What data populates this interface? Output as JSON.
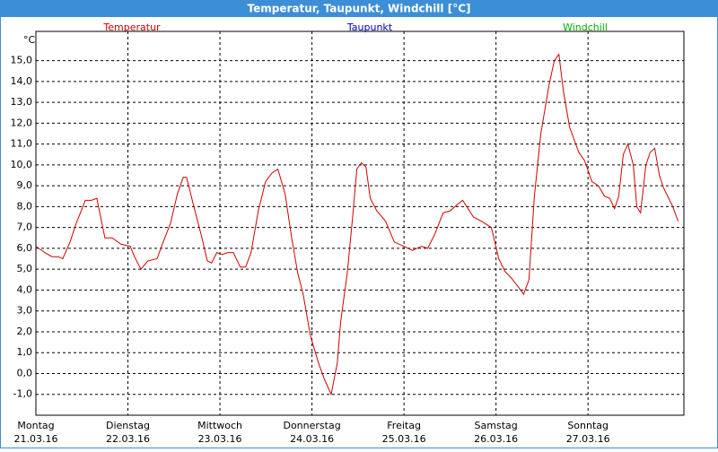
{
  "chart_data": {
    "type": "line",
    "title": "Temperatur, Taupunkt, Windchill [°C]",
    "y_unit": "°C",
    "legend": [
      {
        "name": "Temperatur",
        "color": "#d00000"
      },
      {
        "name": "Taupunkt",
        "color": "#0000c0"
      },
      {
        "name": "Windchill",
        "color": "#00b000"
      }
    ],
    "x": [
      0,
      2.3,
      4.2,
      5.8,
      7.0,
      8.9,
      10.5,
      12.9,
      14.5,
      15.9,
      18.0,
      19.9,
      22.2,
      24.6,
      25.7,
      27.4,
      29.2,
      31.6,
      33.2,
      35.1,
      36.9,
      38.4,
      39.3,
      41.2,
      43.3,
      44.7,
      45.8,
      47.2,
      48.6,
      50.0,
      51.5,
      53.3,
      54.7,
      56.1,
      58.0,
      59.9,
      61.5,
      63.1,
      65.0,
      66.7,
      68.3,
      69.7,
      71.6,
      73.7,
      75.3,
      77.0,
      78.6,
      79.5,
      81.2,
      82.6,
      83.7,
      84.9,
      86.1,
      87.2,
      88.9,
      91.2,
      93.5,
      95.9,
      98.2,
      100.6,
      102.2,
      104.1,
      106.2,
      108.1,
      109.9,
      111.3,
      112.7,
      114.1,
      116.2,
      118.8,
      120.7,
      122.3,
      123.9,
      125.6,
      127.2,
      128.6,
      130.0,
      131.7,
      133.8,
      135.2,
      136.4,
      137.6,
      139.2,
      141.6,
      143.1,
      145.0,
      146.7,
      148.3,
      149.7,
      150.9,
      152.0,
      153.2,
      154.4,
      155.8,
      156.7,
      157.7,
      159.1,
      160.2,
      161.4,
      162.6,
      163.7,
      166.1,
      167.5
    ],
    "series": [
      {
        "name": "Temperatur",
        "color": "#d00000",
        "values": [
          6.1,
          5.8,
          5.6,
          5.6,
          5.5,
          6.3,
          7.2,
          8.3,
          8.3,
          8.4,
          6.5,
          6.5,
          6.2,
          6.1,
          5.6,
          5.0,
          5.4,
          5.5,
          6.3,
          7.2,
          8.6,
          9.4,
          9.4,
          8.0,
          6.5,
          5.4,
          5.3,
          5.8,
          5.7,
          5.8,
          5.8,
          5.1,
          5.1,
          5.8,
          7.8,
          9.2,
          9.6,
          9.8,
          8.6,
          6.5,
          4.8,
          3.8,
          1.8,
          0.5,
          -0.3,
          -1.0,
          0.5,
          2.5,
          4.8,
          7.5,
          9.8,
          10.1,
          9.9,
          8.4,
          7.8,
          7.3,
          6.3,
          6.1,
          5.9,
          6.1,
          6.0,
          6.7,
          7.7,
          7.8,
          8.1,
          8.3,
          7.9,
          7.5,
          7.3,
          7.0,
          5.5,
          4.9,
          4.6,
          4.2,
          3.8,
          4.5,
          8.5,
          11.5,
          13.8,
          15.0,
          15.3,
          13.5,
          11.8,
          10.6,
          10.2,
          9.2,
          9.0,
          8.5,
          8.4,
          7.9,
          8.5,
          10.5,
          11.0,
          10.0,
          8.0,
          7.7,
          10.0,
          10.6,
          10.8,
          9.5,
          8.9,
          8.0,
          7.3
        ]
      }
    ],
    "xlim": [
      0,
      169
    ],
    "xticks": [
      {
        "value": 0,
        "label": "Montag"
      },
      {
        "value": 24,
        "label": "Dienstag"
      },
      {
        "value": 48,
        "label": "Mittwoch"
      },
      {
        "value": 72,
        "label": "Donnerstag"
      },
      {
        "value": 96,
        "label": "Freitag"
      },
      {
        "value": 120,
        "label": "Samstag"
      },
      {
        "value": 144,
        "label": "Sonntag"
      }
    ],
    "xtick_dates": [
      "21.03.16",
      "22.03.16",
      "23.03.16",
      "24.03.16",
      "25.03.16",
      "26.03.16",
      "27.03.16"
    ],
    "ylim": [
      -2,
      16.4
    ],
    "yticks": [
      {
        "value": -1,
        "label": "-1,0"
      },
      {
        "value": 0,
        "label": "0,0"
      },
      {
        "value": 1,
        "label": "1,0"
      },
      {
        "value": 2,
        "label": "2,0"
      },
      {
        "value": 3,
        "label": "3,0"
      },
      {
        "value": 4,
        "label": "4,0"
      },
      {
        "value": 5,
        "label": "5,0"
      },
      {
        "value": 6,
        "label": "6,0"
      },
      {
        "value": 7,
        "label": "7,0"
      },
      {
        "value": 8,
        "label": "8,0"
      },
      {
        "value": 9,
        "label": "9,0"
      },
      {
        "value": 10,
        "label": "10,0"
      },
      {
        "value": 11,
        "label": "11,0"
      },
      {
        "value": 12,
        "label": "12,0"
      },
      {
        "value": 13,
        "label": "13,0"
      },
      {
        "value": 14,
        "label": "14,0"
      },
      {
        "value": 15,
        "label": "15,0"
      }
    ],
    "grid": true
  }
}
